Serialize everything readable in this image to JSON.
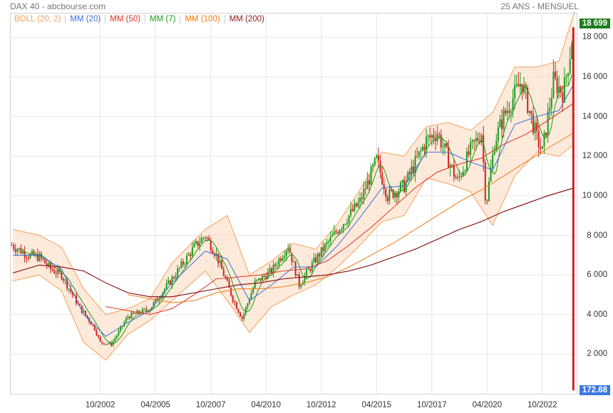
{
  "header": {
    "title": "DAX 40 - abcbourse.com",
    "period": "25 ANS - MENSUEL"
  },
  "legend": [
    {
      "label": "BOLL (20, 2)",
      "color": "#f5a05a"
    },
    {
      "label": "MM (20)",
      "color": "#3b6fd8"
    },
    {
      "label": "MM (50)",
      "color": "#e03020"
    },
    {
      "label": "MM (7)",
      "color": "#1a9a1a"
    },
    {
      "label": "MM (100)",
      "color": "#f07a10"
    },
    {
      "label": "MM (200)",
      "color": "#8b1a1a"
    }
  ],
  "badges": {
    "last": "18 699",
    "last_color": "#1e7e1e",
    "low": "172.68",
    "low_color": "#3a78e0"
  },
  "chart_data": {
    "type": "candlestick",
    "ylim": [
      0,
      19200
    ],
    "grid": true,
    "y_ticks": [
      2000,
      4000,
      6000,
      8000,
      10000,
      12000,
      14000,
      16000,
      18000
    ],
    "y_tick_labels": [
      "2 000",
      "4 000",
      "6 000",
      "8 000",
      "10 000",
      "12 000",
      "14 000",
      "16 000",
      "18 000"
    ],
    "x_ticks": [
      "10/2002",
      "04/2005",
      "10/2007",
      "04/2010",
      "10/2012",
      "04/2015",
      "10/2017",
      "04/2020",
      "10/2022"
    ],
    "x_tick_years": [
      2002.75,
      2005.25,
      2007.75,
      2010.25,
      2012.75,
      2015.25,
      2017.75,
      2020.25,
      2022.75
    ],
    "x_range": [
      1998.7,
      2024.3
    ],
    "close_series": {
      "x": [
        1998.75,
        1999.5,
        2000.0,
        2000.5,
        2001.0,
        2001.75,
        2002.5,
        2002.75,
        2003.25,
        2004.0,
        2005.0,
        2006.0,
        2007.0,
        2007.5,
        2008.0,
        2008.75,
        2009.17,
        2009.75,
        2010.5,
        2011.25,
        2011.75,
        2012.5,
        2013.5,
        2014.5,
        2015.25,
        2015.75,
        2016.5,
        2017.5,
        2018.0,
        2018.9,
        2019.5,
        2020.0,
        2020.2,
        2020.6,
        2021.0,
        2021.8,
        2022.5,
        2022.75,
        2023.25,
        2023.7,
        2024.0,
        2024.17
      ],
      "values": [
        7500,
        7000,
        6900,
        6300,
        6000,
        4500,
        3300,
        2600,
        2500,
        3900,
        4300,
        5800,
        7400,
        8000,
        7000,
        4800,
        3800,
        5600,
        6200,
        7500,
        5500,
        6800,
        8300,
        9700,
        11800,
        10000,
        10500,
        12800,
        13200,
        10700,
        12300,
        13200,
        9500,
        12800,
        14000,
        15800,
        12900,
        12200,
        15800,
        15200,
        17200,
        18699
      ]
    },
    "lines": {
      "boll_upper": {
        "x": [
          1998.8,
          2000.0,
          2001.0,
          2002.0,
          2003.0,
          2004.0,
          2005.0,
          2006.0,
          2007.5,
          2008.5,
          2009.5,
          2010.5,
          2011.5,
          2012.5,
          2013.5,
          2014.5,
          2015.5,
          2016.5,
          2017.5,
          2018.5,
          2019.5,
          2020.5,
          2021.5,
          2022.5,
          2023.5,
          2024.2
        ],
        "values": [
          8300,
          8000,
          7400,
          5300,
          4000,
          4300,
          4800,
          6600,
          8300,
          9000,
          6000,
          6700,
          7600,
          7300,
          8600,
          10300,
          12200,
          12000,
          13500,
          13700,
          13300,
          14200,
          16500,
          16500,
          16800,
          19300
        ]
      },
      "boll_lower": {
        "x": [
          1998.8,
          2000.0,
          2001.0,
          2002.0,
          2003.0,
          2004.0,
          2005.0,
          2006.0,
          2007.5,
          2008.5,
          2009.5,
          2010.5,
          2011.5,
          2012.5,
          2013.5,
          2014.5,
          2015.5,
          2016.5,
          2017.5,
          2018.5,
          2019.5,
          2020.5,
          2021.5,
          2022.5,
          2023.5,
          2024.2
        ],
        "values": [
          5700,
          6000,
          5200,
          2600,
          1700,
          3000,
          3700,
          4700,
          6200,
          4700,
          3100,
          4400,
          5000,
          5500,
          6400,
          7500,
          8700,
          9000,
          10900,
          10600,
          10200,
          8500,
          11000,
          12200,
          12000,
          12600
        ]
      },
      "mm20": {
        "x": [
          1998.8,
          2000.0,
          2001.0,
          2002.0,
          2003.0,
          2004.0,
          2005.0,
          2006.0,
          2007.5,
          2008.5,
          2009.5,
          2010.5,
          2011.5,
          2012.5,
          2013.5,
          2014.5,
          2015.5,
          2016.5,
          2017.5,
          2018.5,
          2019.5,
          2020.5,
          2021.5,
          2022.5,
          2023.5,
          2024.2
        ],
        "values": [
          7000,
          7000,
          6300,
          4000,
          2900,
          3600,
          4200,
          5600,
          7200,
          6800,
          4700,
          5500,
          6400,
          6400,
          7500,
          8900,
          10400,
          10500,
          12200,
          12200,
          11700,
          11300,
          13600,
          14000,
          14300,
          15700
        ]
      },
      "mm50": {
        "x": [
          2003.0,
          2004.0,
          2005.0,
          2006.0,
          2007.0,
          2008.0,
          2009.0,
          2010.0,
          2011.0,
          2012.0,
          2013.0,
          2014.0,
          2015.0,
          2016.0,
          2017.0,
          2018.0,
          2019.0,
          2020.0,
          2021.0,
          2022.0,
          2023.0,
          2024.2
        ],
        "values": [
          4400,
          4200,
          4000,
          4300,
          5000,
          5800,
          5900,
          6000,
          6200,
          6300,
          6700,
          7500,
          8400,
          9400,
          10400,
          11200,
          11600,
          11900,
          12600,
          13100,
          13800,
          14700
        ]
      },
      "mm100": {
        "x": [
          2004.0,
          2005.0,
          2006.0,
          2007.0,
          2008.0,
          2009.0,
          2010.0,
          2011.0,
          2012.0,
          2013.0,
          2014.0,
          2015.0,
          2016.0,
          2017.0,
          2018.0,
          2019.0,
          2020.0,
          2021.0,
          2022.0,
          2023.0,
          2024.2
        ],
        "values": [
          5000,
          4800,
          4600,
          4700,
          5100,
          5300,
          5300,
          5400,
          5600,
          5900,
          6400,
          7000,
          7600,
          8300,
          9000,
          9700,
          10300,
          11000,
          11700,
          12400,
          13200
        ]
      },
      "mm200": {
        "x": [
          1998.8,
          2000.0,
          2001.0,
          2002.0,
          2003.0,
          2004.0,
          2005.0,
          2006.0,
          2007.0,
          2008.0,
          2009.0,
          2010.0,
          2011.0,
          2012.0,
          2013.0,
          2014.0,
          2015.0,
          2016.0,
          2017.0,
          2018.0,
          2019.0,
          2020.0,
          2021.0,
          2022.0,
          2023.0,
          2024.2
        ],
        "values": [
          6100,
          6500,
          6400,
          6200,
          5600,
          5100,
          4900,
          4900,
          5100,
          5300,
          5500,
          5600,
          5800,
          5900,
          6000,
          6200,
          6500,
          6900,
          7300,
          7800,
          8300,
          8700,
          9200,
          9600,
          10000,
          10400
        ]
      }
    },
    "crash_bar": {
      "x": 2024.15,
      "from": 18500,
      "to": 172.68
    }
  }
}
